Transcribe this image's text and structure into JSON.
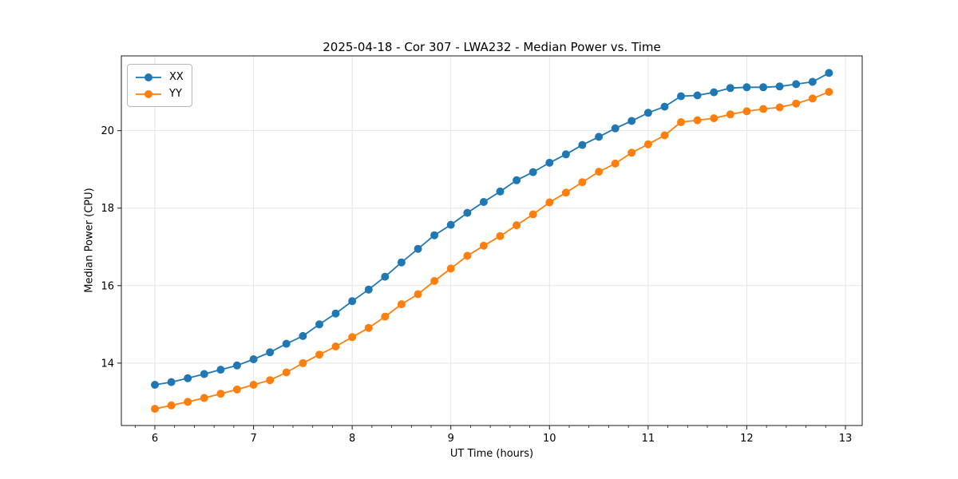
{
  "chart_data": {
    "type": "line",
    "title": "2025-04-18 - Cor 307 - LWA232 - Median Power vs. Time",
    "xlabel": "UT Time (hours)",
    "ylabel": "Median Power (CPU)",
    "xlim": [
      5.66,
      13.17
    ],
    "ylim": [
      12.39,
      21.93
    ],
    "x_ticks": [
      6,
      7,
      8,
      9,
      10,
      11,
      12,
      13
    ],
    "y_ticks": [
      14,
      16,
      18,
      20
    ],
    "x_minor_tick_step": 0.2,
    "grid": true,
    "grid_color": "#e5e5e5",
    "axis_color": "#1a1a1a",
    "legend_position": "upper left",
    "marker": "circle",
    "x": [
      6.0,
      6.167,
      6.333,
      6.5,
      6.667,
      6.833,
      7.0,
      7.167,
      7.333,
      7.5,
      7.667,
      7.833,
      8.0,
      8.167,
      8.333,
      8.5,
      8.667,
      8.833,
      9.0,
      9.167,
      9.333,
      9.5,
      9.667,
      9.833,
      10.0,
      10.167,
      10.333,
      10.5,
      10.667,
      10.833,
      11.0,
      11.167,
      11.333,
      11.5,
      11.667,
      11.833,
      12.0,
      12.167,
      12.333,
      12.5,
      12.667,
      12.833
    ],
    "series": [
      {
        "name": "XX",
        "color": "#1f77b4",
        "values": [
          13.44,
          13.51,
          13.61,
          13.72,
          13.83,
          13.94,
          14.1,
          14.28,
          14.5,
          14.7,
          15.0,
          15.28,
          15.6,
          15.9,
          16.23,
          16.6,
          16.95,
          17.3,
          17.57,
          17.88,
          18.16,
          18.43,
          18.72,
          18.93,
          19.17,
          19.39,
          19.63,
          19.84,
          20.06,
          20.25,
          20.46,
          20.62,
          20.89,
          20.91,
          20.99,
          21.1,
          21.12,
          21.12,
          21.14,
          21.2,
          21.26,
          21.49
        ]
      },
      {
        "name": "YY",
        "color": "#ff7f0e",
        "values": [
          12.82,
          12.91,
          13.0,
          13.1,
          13.21,
          13.32,
          13.44,
          13.56,
          13.76,
          14.0,
          14.22,
          14.43,
          14.67,
          14.91,
          15.2,
          15.52,
          15.78,
          16.12,
          16.44,
          16.77,
          17.03,
          17.28,
          17.56,
          17.84,
          18.15,
          18.4,
          18.67,
          18.94,
          19.15,
          19.43,
          19.65,
          19.88,
          20.22,
          20.27,
          20.32,
          20.42,
          20.5,
          20.56,
          20.6,
          20.7,
          20.83,
          21.0
        ]
      }
    ]
  }
}
